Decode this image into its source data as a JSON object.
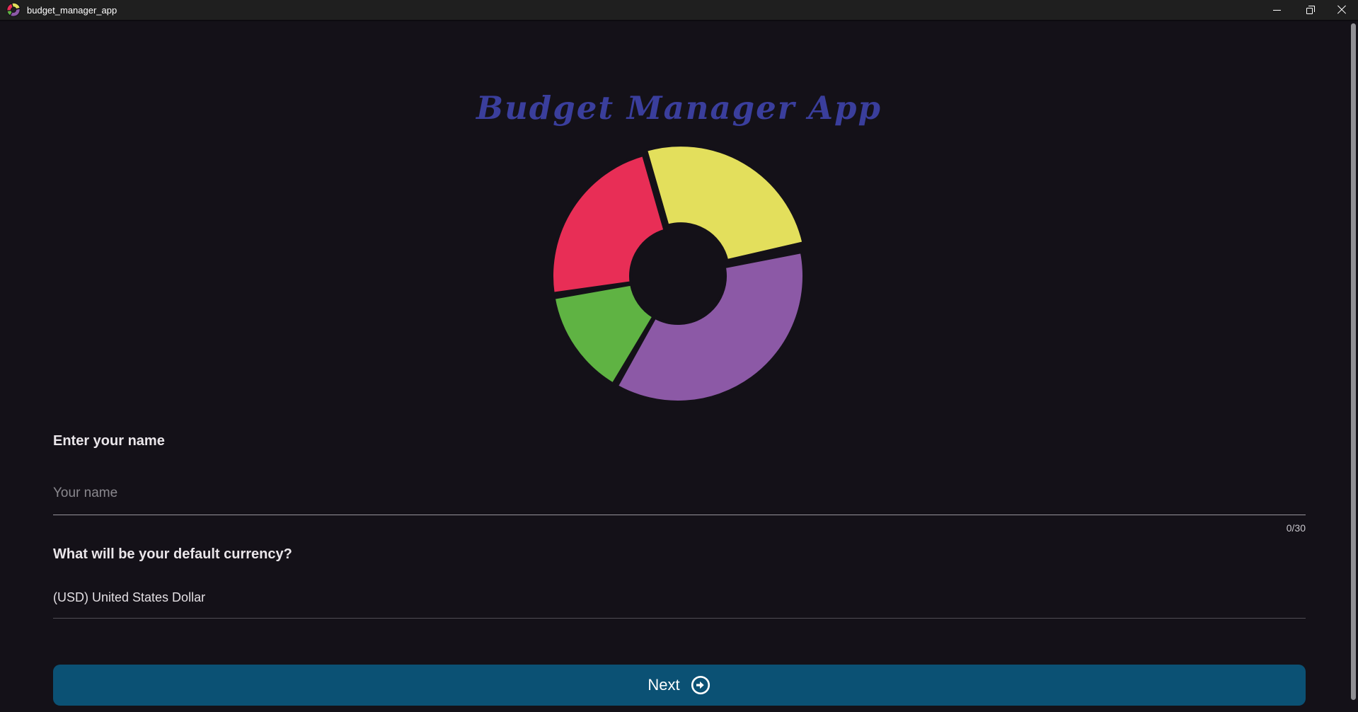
{
  "window": {
    "title": "budget_manager_app",
    "controls": [
      {
        "name": "minimize",
        "icon": "minimize-icon"
      },
      {
        "name": "restore",
        "icon": "restore-icon"
      },
      {
        "name": "close",
        "icon": "close-icon"
      }
    ]
  },
  "header": {
    "app_title": "Budget Manager App"
  },
  "chart_data": {
    "type": "pie",
    "title": "Budget Manager App donut logo",
    "legend": "none",
    "inner_radius_ratio": 0.37,
    "gap_color": "#141118",
    "slices": [
      {
        "name": "yellow-slice",
        "color": "#e3df5c",
        "start_deg": -16,
        "end_deg": 77,
        "exploded": true
      },
      {
        "name": "purple-slice",
        "color": "#8c59a6",
        "start_deg": 79,
        "end_deg": 209,
        "exploded": false
      },
      {
        "name": "green-slice",
        "color": "#5fb343",
        "start_deg": 211,
        "end_deg": 260,
        "exploded": false
      },
      {
        "name": "red-slice",
        "color": "#e82e56",
        "start_deg": 262,
        "end_deg": 344,
        "exploded": false
      }
    ]
  },
  "form": {
    "name_label": "Enter your name",
    "name_placeholder": "Your name",
    "name_value": "",
    "name_counter": "0/30",
    "currency_label": "What will be your default currency?",
    "currency_value": "(USD) United States Dollar"
  },
  "footer": {
    "next_label": "Next"
  },
  "colors": {
    "background": "#141118",
    "titlebar": "#1f1f1f",
    "accent_button": "#0b5174",
    "app_title_text": "#3a3e9c",
    "scrollbar": "#919095"
  }
}
